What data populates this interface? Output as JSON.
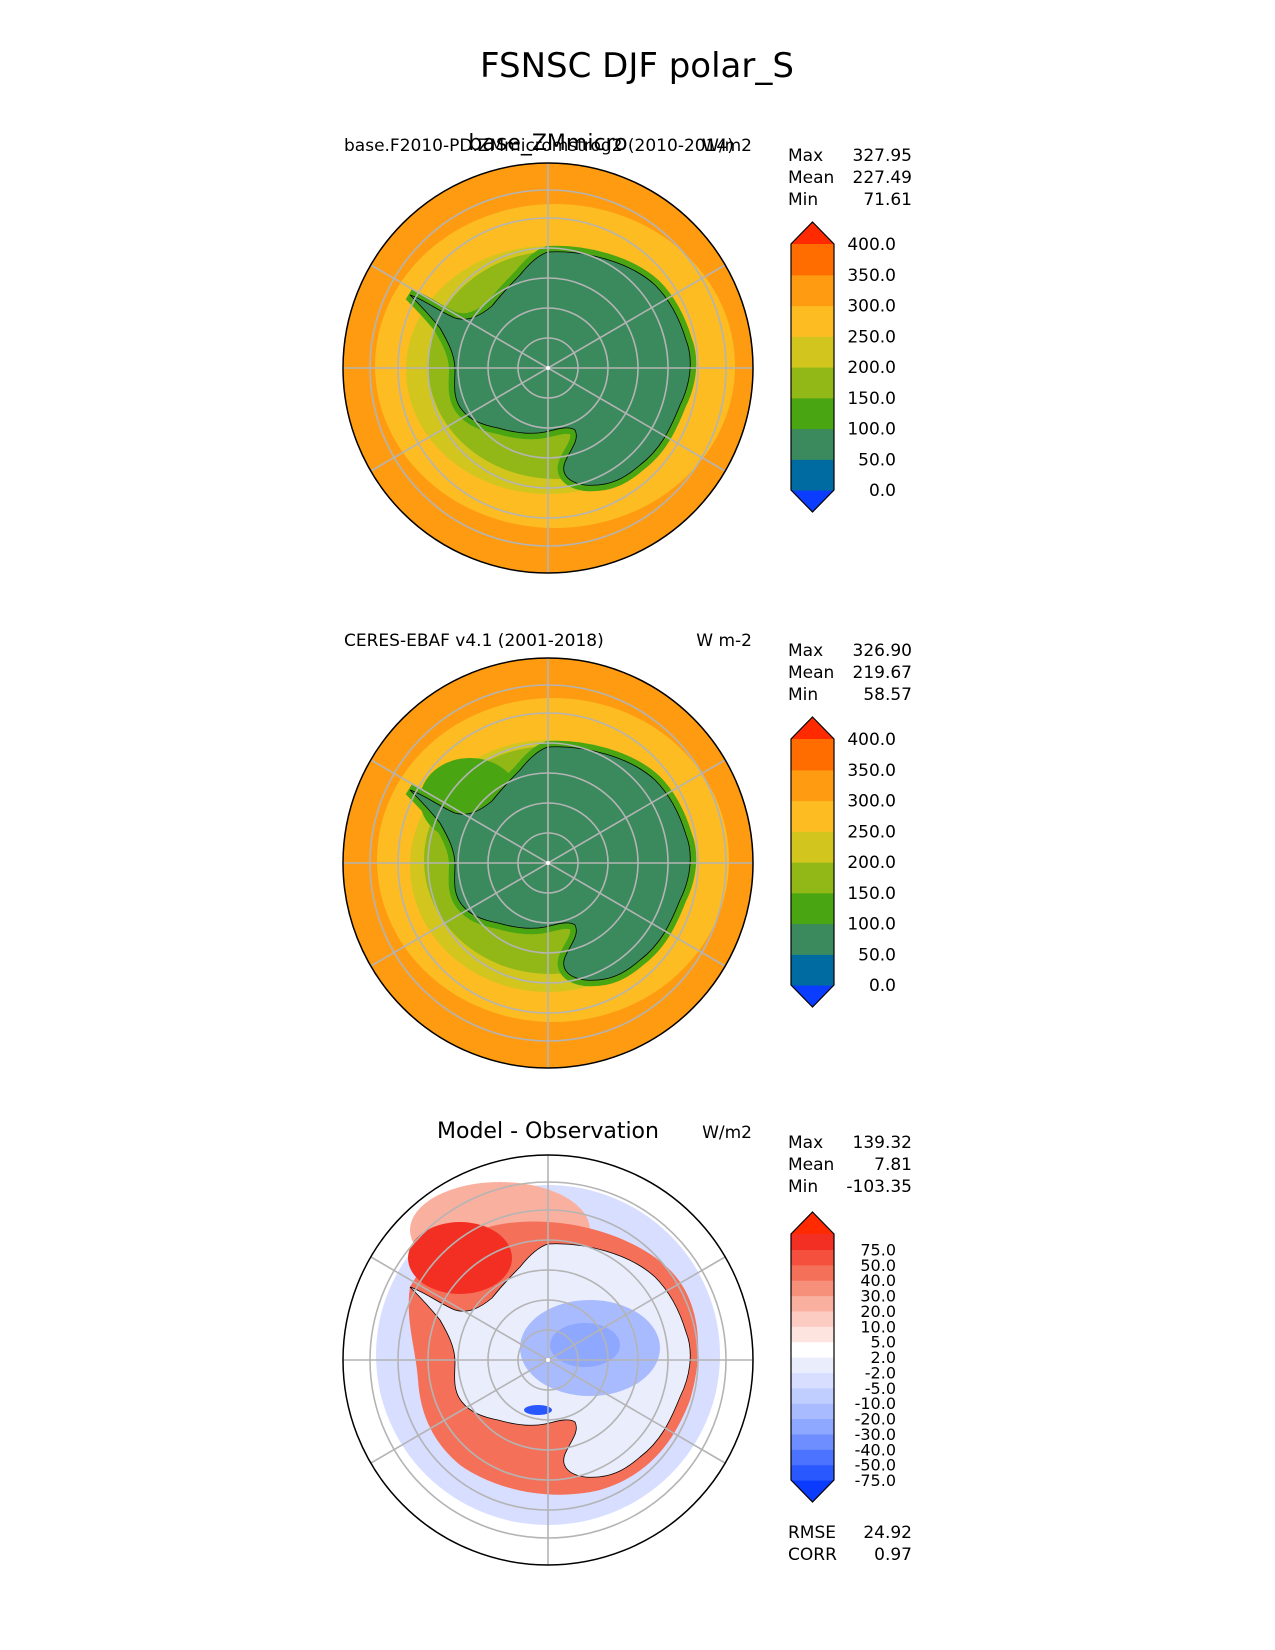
{
  "figure": {
    "title": "FSNSC DJF polar_S"
  },
  "colors": {
    "field_levels": [
      "#0a3dff",
      "#006ba0",
      "#3a8a5e",
      "#4aa512",
      "#91b817",
      "#d2c61e",
      "#fcbc22",
      "#ff9b10",
      "#ff6d00",
      "#ff2a00"
    ],
    "diff_levels": [
      "#0b3bff",
      "#2a58ff",
      "#4b73ff",
      "#6e8dff",
      "#8ea7ff",
      "#a9bbff",
      "#c0cdff",
      "#d7deff",
      "#eaeefc",
      "#ffffff",
      "#fde4df",
      "#fcccc2",
      "#fab09f",
      "#f7907a",
      "#f57059",
      "#f4503d",
      "#f22f22",
      "#ff2a00"
    ],
    "land_model": "#3a8a5e",
    "ocean_outer": "#ff9b10",
    "grid": "#b4b4b4"
  },
  "chart_data": [
    {
      "type": "heatmap",
      "title": "base_ZMmicro",
      "left_label": "base.F2010-PD.ZMmicromstrog2 (2010-2014)",
      "units": "W/m2",
      "stats": {
        "max_label": "Max",
        "max": "327.95",
        "mean_label": "Mean",
        "mean": "227.49",
        "min_label": "Min",
        "min": "71.61"
      },
      "colorbar": {
        "levels": [
          0,
          50,
          100,
          150,
          200,
          250,
          300,
          350,
          400
        ],
        "tick_labels": [
          "0.0",
          "50.0",
          "100.0",
          "150.0",
          "200.0",
          "250.0",
          "300.0",
          "350.0",
          "400.0"
        ],
        "extend": "both"
      },
      "projection": "south-polar-stereographic"
    },
    {
      "type": "heatmap",
      "title": "",
      "left_label": "CERES-EBAF v4.1 (2001-2018)",
      "units": "W m-2",
      "stats": {
        "max_label": "Max",
        "max": "326.90",
        "mean_label": "Mean",
        "mean": "219.67",
        "min_label": "Min",
        "min": "58.57"
      },
      "colorbar": {
        "levels": [
          0,
          50,
          100,
          150,
          200,
          250,
          300,
          350,
          400
        ],
        "tick_labels": [
          "0.0",
          "50.0",
          "100.0",
          "150.0",
          "200.0",
          "250.0",
          "300.0",
          "350.0",
          "400.0"
        ],
        "extend": "both"
      },
      "projection": "south-polar-stereographic"
    },
    {
      "type": "heatmap",
      "title": "Model - Observation",
      "left_label": "",
      "units": "W/m2",
      "stats": {
        "max_label": "Max",
        "max": "139.32",
        "mean_label": "Mean",
        "mean": "7.81",
        "min_label": "Min",
        "min": "-103.35"
      },
      "colorbar": {
        "levels": [
          -75,
          -50,
          -40,
          -30,
          -20,
          -10,
          -5,
          -2,
          2,
          5,
          10,
          20,
          30,
          40,
          50,
          75
        ],
        "tick_labels": [
          "-75.0",
          "-50.0",
          "-40.0",
          "-30.0",
          "-20.0",
          "-10.0",
          "-5.0",
          "-2.0",
          "2.0",
          "5.0",
          "10.0",
          "20.0",
          "30.0",
          "40.0",
          "50.0",
          "75.0"
        ],
        "extend": "both"
      },
      "metrics": {
        "rmse_label": "RMSE",
        "rmse": "24.92",
        "corr_label": "CORR",
        "corr": "0.97"
      },
      "projection": "south-polar-stereographic"
    }
  ]
}
